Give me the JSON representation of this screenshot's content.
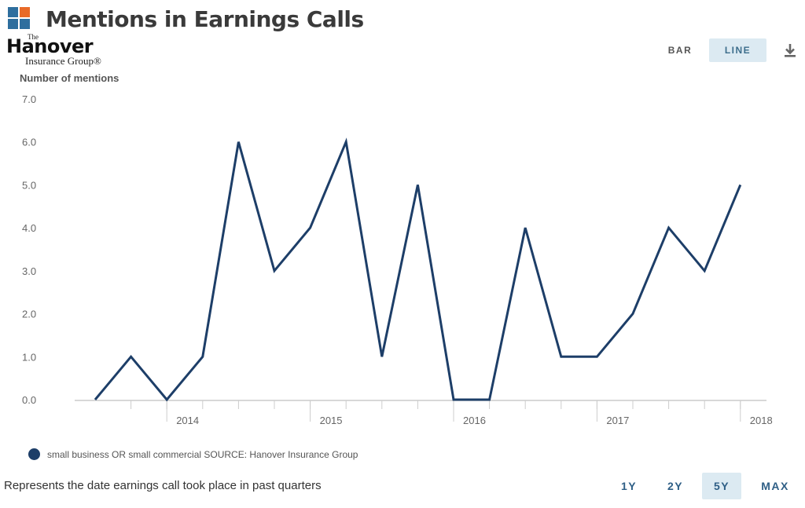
{
  "header": {
    "title": "Mentions in Earnings Calls",
    "app_icon": "brand-squares-icon"
  },
  "company": {
    "the": "The",
    "name": "Hanover",
    "sub": "Insurance Group®"
  },
  "toolbar": {
    "bar_label": "BAR",
    "line_label": "LINE",
    "active": "LINE",
    "download_icon": "download-icon"
  },
  "colors": {
    "line": "#1d3e68",
    "active_bg": "#dceaf2",
    "axis": "#cccccc"
  },
  "footer": {
    "note": "Represents the date earnings call took place in past quarters"
  },
  "ranges": {
    "items": [
      "1Y",
      "2Y",
      "5Y",
      "MAX"
    ],
    "active": "5Y"
  },
  "chart_data": {
    "type": "line",
    "ylabel": "Number of mentions",
    "ylim": [
      0,
      7
    ],
    "yticks": [
      "0.0",
      "1.0",
      "2.0",
      "3.0",
      "4.0",
      "5.0",
      "6.0",
      "7.0"
    ],
    "x_year_labels": [
      "2014",
      "2015",
      "2016",
      "2017",
      "2018"
    ],
    "grid": false,
    "legend_position": "bottom-left",
    "series": [
      {
        "name": "small business OR small commercial SOURCE: Hanover Insurance Group",
        "x": [
          "2013-07",
          "2013-10",
          "2014-01",
          "2014-04",
          "2014-07",
          "2014-10",
          "2015-01",
          "2015-04",
          "2015-07",
          "2015-10",
          "2016-01",
          "2016-04",
          "2016-07",
          "2016-10",
          "2017-01",
          "2017-04",
          "2017-07",
          "2017-10",
          "2018-01"
        ],
        "values": [
          0,
          1,
          0,
          1,
          6,
          3,
          4,
          6,
          1,
          5,
          0,
          0,
          4,
          1,
          1,
          2,
          4,
          3,
          5
        ]
      }
    ]
  }
}
